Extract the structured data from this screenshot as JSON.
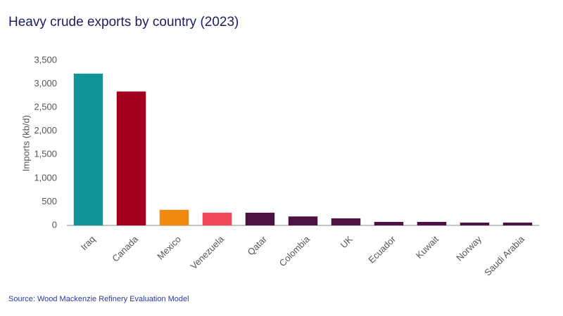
{
  "chart_data": {
    "type": "bar",
    "title": "Heavy crude exports by country (2023)",
    "y_label": "Imports (kb/d)",
    "source": "Source: Wood Mackenzie Refinery Evaluation Model",
    "categories": [
      "Iraq",
      "Canada",
      "Mexico",
      "Venezuela",
      "Qatar",
      "Colombia",
      "UK",
      "Ecuador",
      "Kuwait",
      "Norway",
      "Saudi Arabia"
    ],
    "values": [
      3220,
      2840,
      330,
      270,
      270,
      190,
      150,
      75,
      75,
      60,
      60
    ],
    "colors": [
      "#119597",
      "#a3001f",
      "#f28a0f",
      "#f1485b",
      "#4b1242",
      "#4b1242",
      "#4b1242",
      "#4b1242",
      "#4b1242",
      "#4b1242",
      "#4b1242"
    ],
    "ylim": [
      0,
      3500
    ],
    "yticks": [
      0,
      500,
      {
        "value": 1000,
        "label": "1,000"
      },
      {
        "value": 1500,
        "label": "1,500"
      },
      {
        "value": 2000,
        "label": "2,000"
      },
      {
        "value": 2500,
        "label": "2,500"
      },
      {
        "value": 3000,
        "label": "3,000"
      },
      {
        "value": 3500,
        "label": "3,500"
      }
    ],
    "grid": false
  }
}
